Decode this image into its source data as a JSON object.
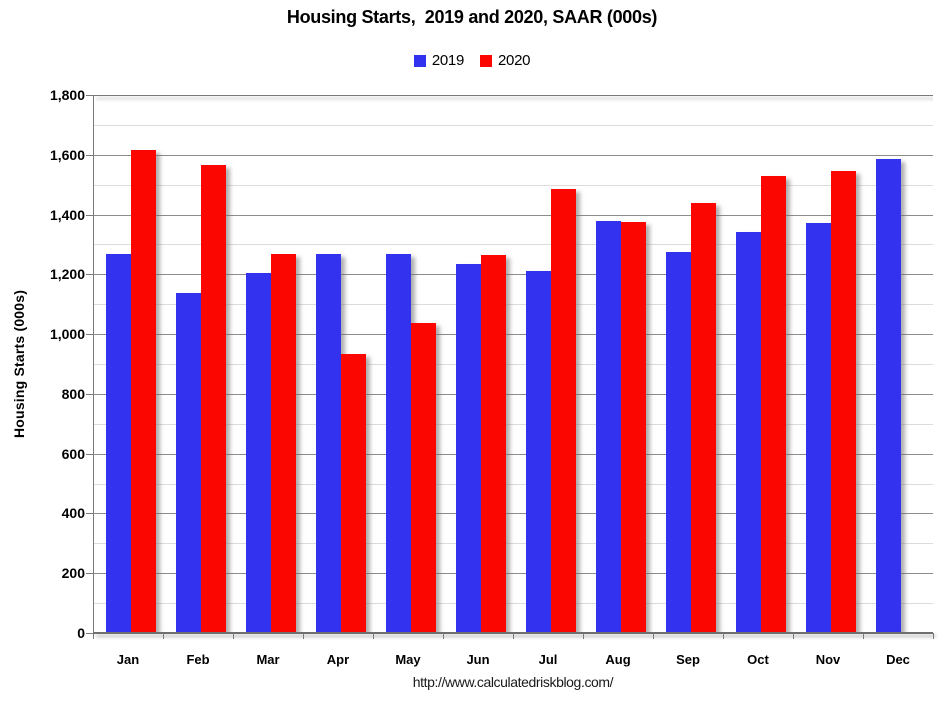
{
  "title": "Housing Starts,  2019 and 2020, SAAR (000s)",
  "footer_url": "http://www.calculatedriskblog.com/",
  "chart_data": {
    "type": "bar",
    "title": "Housing Starts,  2019 and 2020, SAAR (000s)",
    "xlabel": "",
    "ylabel": "Housing Starts (000s)",
    "categories": [
      "Jan",
      "Feb",
      "Mar",
      "Apr",
      "May",
      "Jun",
      "Jul",
      "Aug",
      "Sep",
      "Oct",
      "Nov",
      "Dec"
    ],
    "series": [
      {
        "name": "2019",
        "color": "#3333EF",
        "values": [
          1269,
          1138,
          1205,
          1267,
          1267,
          1235,
          1212,
          1377,
          1274,
          1340,
          1371,
          1585
        ]
      },
      {
        "name": "2020",
        "color": "#FB0600",
        "values": [
          1617,
          1567,
          1269,
          934,
          1038,
          1265,
          1487,
          1375,
          1437,
          1528,
          1547,
          null
        ]
      }
    ],
    "ylim": [
      0,
      1800
    ],
    "y_major_ticks": {
      "values": [
        0,
        200,
        400,
        600,
        800,
        1000,
        1200,
        1400,
        1600,
        1800
      ],
      "labels": [
        "0",
        "200",
        "400",
        "600",
        "800",
        "1,000",
        "1,200",
        "1,400",
        "1,600",
        "1,800"
      ]
    },
    "minor_grid_interval": 100,
    "grid": "on",
    "legend_position": "top"
  }
}
